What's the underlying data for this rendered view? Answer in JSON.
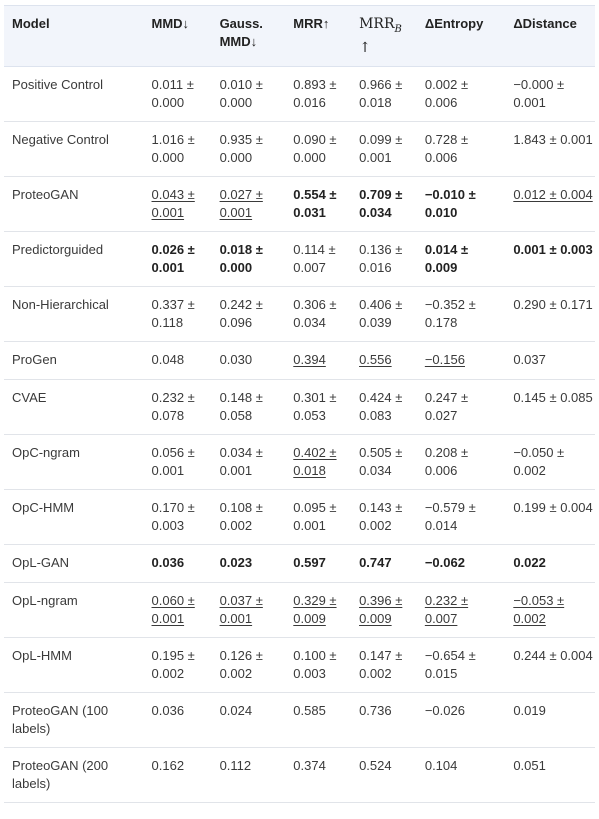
{
  "headers": {
    "model": "Model",
    "mmd": "MMD↓",
    "gauss": "Gauss. MMD↓",
    "mrr": "MRR↑",
    "mrrb_main": "MRR",
    "mrrb_sub": "B",
    "mrrb_arrow": " ↑",
    "dentropy": "ΔEntropy",
    "ddistance": "ΔDistance"
  },
  "rows": [
    {
      "model": "Positive Control",
      "mmd": "0.011 ± 0.000",
      "gauss": "0.010 ± 0.000",
      "mrr": "0.893 ± 0.016",
      "mrrb": "0.966 ± 0.018",
      "dent": "0.002 ± 0.006",
      "ddist": "−0.000 ± 0.001"
    },
    {
      "model": "Negative Control",
      "mmd": "1.016 ± 0.000",
      "gauss": "0.935 ± 0.000",
      "mrr": "0.090 ± 0.000",
      "mrrb": "0.099 ± 0.001",
      "dent": "0.728 ± 0.006",
      "ddist": "1.843 ± 0.001"
    },
    {
      "model": "ProteoGAN",
      "mmd": "0.043 ± 0.001",
      "gauss": "0.027 ± 0.001",
      "mrr": "0.554 ± 0.031",
      "mrrb": "0.709 ± 0.034",
      "dent": "−0.010 ± 0.010",
      "ddist": "0.012 ± 0.004"
    },
    {
      "model": "Predictorguided",
      "mmd": "0.026 ± 0.001",
      "gauss": "0.018 ± 0.000",
      "mrr": "0.114 ± 0.007",
      "mrrb": "0.136 ± 0.016",
      "dent": "0.014 ± 0.009",
      "ddist": "0.001 ± 0.003"
    },
    {
      "model": "Non-Hierarchical",
      "mmd": "0.337 ± 0.118",
      "gauss": "0.242 ± 0.096",
      "mrr": "0.306 ± 0.034",
      "mrrb": "0.406 ± 0.039",
      "dent": "−0.352 ± 0.178",
      "ddist": "0.290 ± 0.171"
    },
    {
      "model": "ProGen",
      "mmd": "0.048",
      "gauss": "0.030",
      "mrr": "0.394",
      "mrrb": "0.556",
      "dent": "−0.156",
      "ddist": "0.037"
    },
    {
      "model": "CVAE",
      "mmd": "0.232 ± 0.078",
      "gauss": "0.148 ± 0.058",
      "mrr": "0.301 ± 0.053",
      "mrrb": "0.424 ± 0.083",
      "dent": "0.247 ± 0.027",
      "ddist": "0.145 ± 0.085"
    },
    {
      "model": "OpC-ngram",
      "mmd": "0.056 ± 0.001",
      "gauss": "0.034 ± 0.001",
      "mrr": "0.402 ± 0.018",
      "mrrb": "0.505 ± 0.034",
      "dent": "0.208 ± 0.006",
      "ddist": "−0.050 ± 0.002"
    },
    {
      "model": "OpC-HMM",
      "mmd": "0.170 ± 0.003",
      "gauss": "0.108 ± 0.002",
      "mrr": "0.095 ± 0.001",
      "mrrb": "0.143 ± 0.002",
      "dent": "−0.579 ± 0.014",
      "ddist": "0.199 ± 0.004"
    },
    {
      "model": "OpL-GAN",
      "mmd": "0.036",
      "gauss": "0.023",
      "mrr": "0.597",
      "mrrb": "0.747",
      "dent": "−0.062",
      "ddist": "0.022"
    },
    {
      "model": "OpL-ngram",
      "mmd": "0.060 ± 0.001",
      "gauss": "0.037 ± 0.001",
      "mrr": "0.329 ± 0.009",
      "mrrb": "0.396 ± 0.009",
      "dent": "0.232 ± 0.007",
      "ddist": "−0.053 ± 0.002"
    },
    {
      "model": "OpL-HMM",
      "mmd": "0.195 ± 0.002",
      "gauss": "0.126 ± 0.002",
      "mrr": "0.100 ± 0.003",
      "mrrb": "0.147 ± 0.002",
      "dent": "−0.654 ± 0.015",
      "ddist": "0.244 ± 0.004"
    },
    {
      "model": "ProteoGAN (100 labels)",
      "mmd": "0.036",
      "gauss": "0.024",
      "mrr": "0.585",
      "mrrb": "0.736",
      "dent": "−0.026",
      "ddist": "0.019"
    },
    {
      "model": "ProteoGAN (200 labels)",
      "mmd": "0.162",
      "gauss": "0.112",
      "mrr": "0.374",
      "mrrb": "0.524",
      "dent": "0.104",
      "ddist": "0.051"
    }
  ]
}
